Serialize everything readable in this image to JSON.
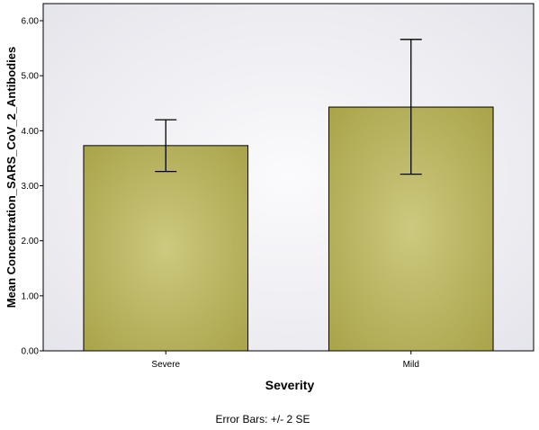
{
  "chart_data": {
    "type": "bar",
    "categories": [
      "Severe",
      "Mild"
    ],
    "values": [
      3.73,
      4.43
    ],
    "error_bars": [
      {
        "low": 3.26,
        "high": 4.2
      },
      {
        "low": 3.21,
        "high": 5.66
      }
    ],
    "xlabel": "Severity",
    "ylabel": "Mean Concentration_SARS_CoV_2_Antibodies",
    "ylim": [
      0,
      6.0
    ],
    "yticks": [
      "0.00",
      "1.00",
      "2.00",
      "3.00",
      "4.00",
      "5.00",
      "6.00"
    ],
    "footnote": "Error Bars: +/- 2 SE",
    "grid": false,
    "colors": {
      "bar_center": "#cdc97e",
      "bar_edge": "#a9a34a",
      "plot_bg_center": "#fbfbfd",
      "plot_bg_edge": "#e3e3ea"
    }
  }
}
